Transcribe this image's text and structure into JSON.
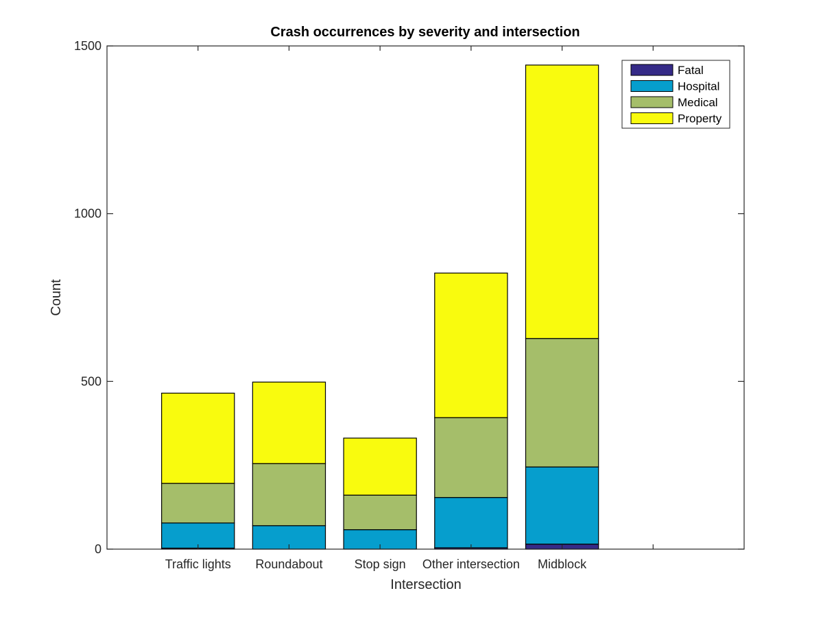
{
  "chart_data": {
    "type": "bar",
    "stacked": true,
    "title": "Crash occurrences by severity and intersection",
    "xlabel": "Intersection",
    "ylabel": "Count",
    "categories": [
      "Traffic lights",
      "Roundabout",
      "Stop sign",
      "Other intersection",
      "Midblock"
    ],
    "x_slots": 7,
    "ylim": [
      0,
      1500
    ],
    "yticks": [
      0,
      500,
      1000,
      1500
    ],
    "grid": false,
    "legend_position": "top-right",
    "series": [
      {
        "name": "Fatal",
        "color": "#352a87",
        "values": [
          3,
          0,
          0,
          4,
          15
        ]
      },
      {
        "name": "Hospital",
        "color": "#069ecd",
        "values": [
          75,
          70,
          58,
          150,
          230
        ]
      },
      {
        "name": "Medical",
        "color": "#a5be6a",
        "values": [
          118,
          185,
          103,
          238,
          383
        ]
      },
      {
        "name": "Property",
        "color": "#f9fb0e",
        "values": [
          269,
          243,
          170,
          431,
          815
        ]
      }
    ]
  }
}
